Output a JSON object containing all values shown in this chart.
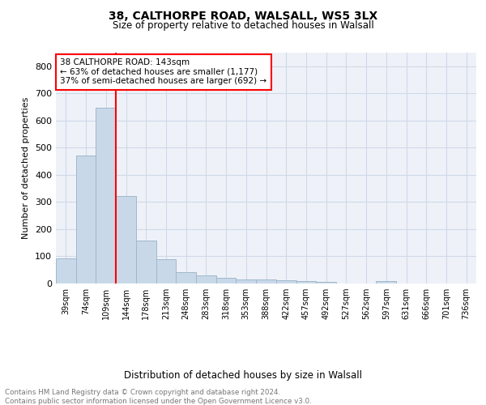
{
  "title1": "38, CALTHORPE ROAD, WALSALL, WS5 3LX",
  "title2": "Size of property relative to detached houses in Walsall",
  "xlabel": "Distribution of detached houses by size in Walsall",
  "ylabel": "Number of detached properties",
  "categories": [
    "39sqm",
    "74sqm",
    "109sqm",
    "144sqm",
    "178sqm",
    "213sqm",
    "248sqm",
    "283sqm",
    "318sqm",
    "353sqm",
    "388sqm",
    "422sqm",
    "457sqm",
    "492sqm",
    "527sqm",
    "562sqm",
    "597sqm",
    "631sqm",
    "666sqm",
    "701sqm",
    "736sqm"
  ],
  "values": [
    93,
    470,
    648,
    323,
    158,
    90,
    42,
    29,
    20,
    15,
    15,
    12,
    8,
    5,
    0,
    0,
    8,
    0,
    0,
    0,
    0
  ],
  "bar_color": "#c8d8e8",
  "bar_edge_color": "#a0b8cc",
  "annotation_text": "38 CALTHORPE ROAD: 143sqm\n← 63% of detached houses are smaller (1,177)\n37% of semi-detached houses are larger (692) →",
  "ylim": [
    0,
    850
  ],
  "yticks": [
    0,
    100,
    200,
    300,
    400,
    500,
    600,
    700,
    800
  ],
  "footer_text": "Contains HM Land Registry data © Crown copyright and database right 2024.\nContains public sector information licensed under the Open Government Licence v3.0.",
  "grid_color": "#d0d8e8",
  "background_color": "#eef2f8"
}
